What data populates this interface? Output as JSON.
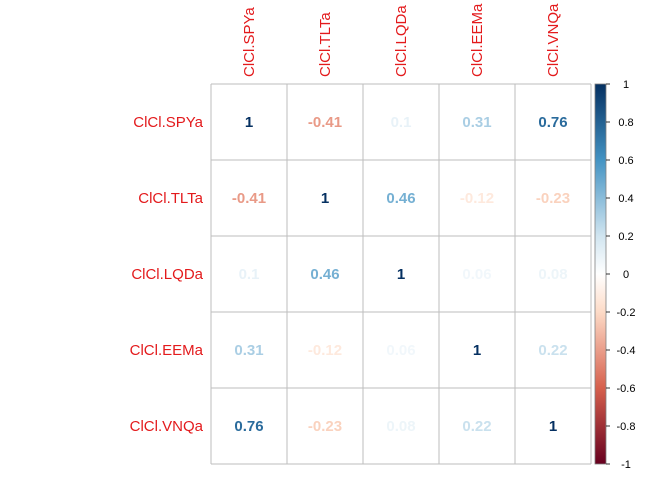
{
  "chart_data": {
    "type": "heatmap",
    "variables": [
      "ClCl.SPYa",
      "ClCl.TLTa",
      "ClCl.LQDa",
      "ClCl.EEMa",
      "ClCl.VNQa"
    ],
    "matrix": [
      [
        1,
        -0.41,
        0.1,
        0.31,
        0.76
      ],
      [
        -0.41,
        1,
        0.46,
        -0.12,
        -0.23
      ],
      [
        0.1,
        0.46,
        1,
        0.06,
        0.08
      ],
      [
        0.31,
        -0.12,
        0.06,
        1,
        0.22
      ],
      [
        0.76,
        -0.23,
        0.08,
        0.22,
        1
      ]
    ],
    "colorbar": {
      "range": [
        -1,
        1
      ],
      "ticks": [
        "1",
        "0.8",
        "0.6",
        "0.4",
        "0.2",
        "0",
        "-0.2",
        "-0.4",
        "-0.6",
        "-0.8",
        "-1"
      ],
      "colors": {
        "neg_end": "#67001F",
        "neg_mid": "#D6604D",
        "neg_light": "#FDDBC7",
        "zero": "#FFFFFF",
        "pos_light": "#D1E5F0",
        "pos_mid": "#4393C3",
        "pos_end": "#053061"
      }
    },
    "label_color": "#E31A1C",
    "grid_color": "#BEBEBE",
    "title": "",
    "xlabel": "",
    "ylabel": ""
  }
}
